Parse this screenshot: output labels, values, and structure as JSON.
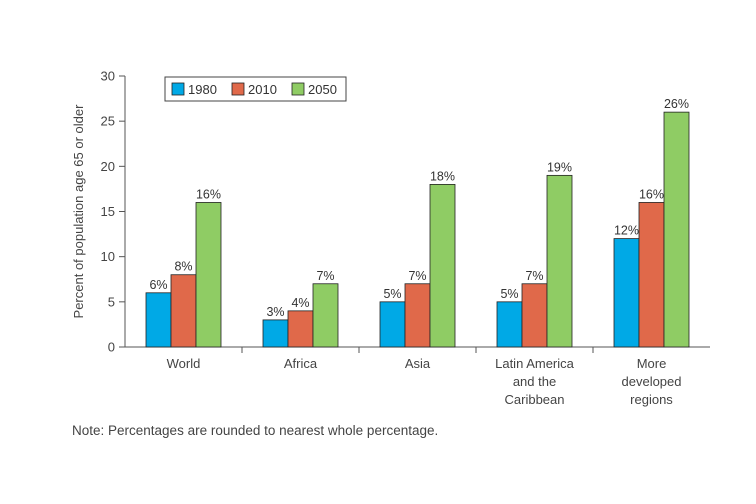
{
  "chart_data": {
    "type": "bar",
    "ylabel": "Percent of population age 65 or older",
    "ylim": [
      0,
      30
    ],
    "yticks": [
      0,
      5,
      10,
      15,
      20,
      25,
      30
    ],
    "grid": false,
    "legend_position": "top-left",
    "categories": [
      [
        "World"
      ],
      [
        "Africa"
      ],
      [
        "Asia"
      ],
      [
        "Latin America",
        "and the",
        "Caribbean"
      ],
      [
        "More",
        "developed",
        "regions"
      ]
    ],
    "series": [
      {
        "name": "1980",
        "color": "#00a9e6",
        "values": [
          6,
          3,
          5,
          5,
          12
        ],
        "labels": [
          "6%",
          "3%",
          "5%",
          "5%",
          "12%"
        ]
      },
      {
        "name": "2010",
        "color": "#e0694a",
        "values": [
          8,
          4,
          7,
          7,
          16
        ],
        "labels": [
          "8%",
          "4%",
          "7%",
          "7%",
          "16%"
        ]
      },
      {
        "name": "2050",
        "color": "#8fcc64",
        "values": [
          16,
          7,
          18,
          19,
          26
        ],
        "labels": [
          "16%",
          "7%",
          "18%",
          "19%",
          "26%"
        ]
      }
    ]
  },
  "note": "Note: Percentages are rounded to nearest whole percentage."
}
